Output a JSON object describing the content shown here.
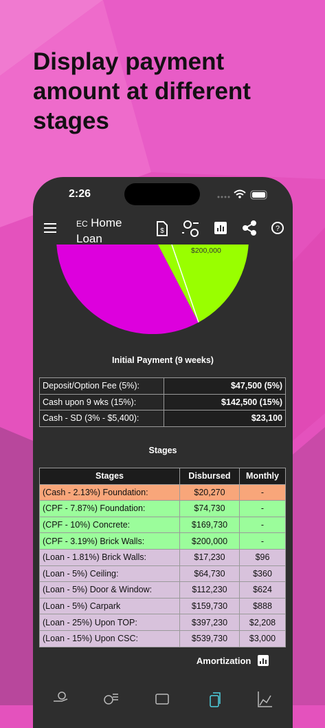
{
  "headline": "Display payment amount at different stages",
  "status_bar": {
    "time": "2:26"
  },
  "app_bar": {
    "prefix": "EC",
    "title_line1": "Home",
    "title_line2": "Loan"
  },
  "pie_label": "$200,000",
  "initial_payment": {
    "title": "Initial Payment (9 weeks)",
    "rows": [
      [
        "Deposit/Option Fee (5%):",
        "$47,500 (5%)"
      ],
      [
        "Cash upon 9 wks (15%):",
        "$142,500 (15%)"
      ],
      [
        "Cash - SD (3% - $5,400):",
        "$23,100"
      ]
    ]
  },
  "stages": {
    "title": "Stages",
    "header": [
      "Stages",
      "Disbursed",
      "Monthly"
    ],
    "rows": [
      [
        "(Cash - 2.13%) Foundation:",
        "$20,270",
        "-"
      ],
      [
        "(CPF - 7.87%) Foundation:",
        "$74,730",
        "-"
      ],
      [
        "(CPF - 10%) Concrete:",
        "$169,730",
        "-"
      ],
      [
        "(CPF - 3.19%) Brick Walls:",
        "$200,000",
        "-"
      ],
      [
        "(Loan - 1.81%) Brick Walls:",
        "$17,230",
        "$96"
      ],
      [
        "(Loan - 5%) Ceiling:",
        "$64,730",
        "$360"
      ],
      [
        "(Loan - 5%) Door & Window:",
        "$112,230",
        "$624"
      ],
      [
        "(Loan - 5%) Carpark",
        "$159,730",
        "$888"
      ],
      [
        "(Loan - 25%) Upon TOP:",
        "$397,230",
        "$2,208"
      ],
      [
        "(Loan - 15%) Upon CSC:",
        "$539,730",
        "$3,000"
      ]
    ]
  },
  "amortization": "Amortization"
}
